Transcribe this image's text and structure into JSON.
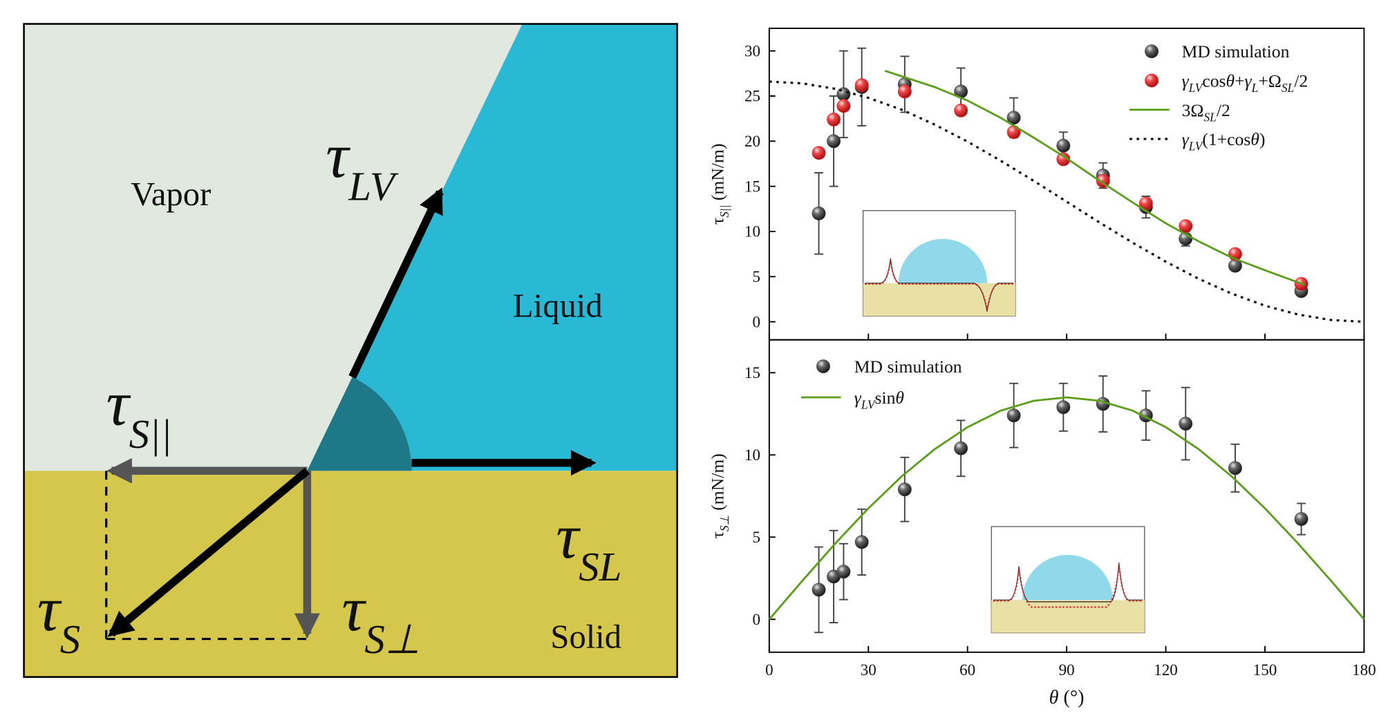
{
  "diagram": {
    "regions": [
      "Vapor",
      "Liquid",
      "Solid"
    ],
    "labels": [
      {
        "symbol": "τ",
        "subscript": "LV"
      },
      {
        "symbol": "τ",
        "subscript": "S||"
      },
      {
        "symbol": "τ",
        "subscript": "SL"
      },
      {
        "symbol": "τ",
        "subscript": "S"
      },
      {
        "symbol": "τ",
        "subscript": "S⊥"
      }
    ]
  },
  "chart_data": [
    {
      "type": "scatter",
      "y_label": [
        {
          "text": "τ",
          "style": "n"
        },
        {
          "text": "S||",
          "style": "sub"
        },
        {
          "text": " (mN/m)",
          "style": "n"
        }
      ],
      "xlim": [
        0,
        180
      ],
      "ylim": [
        -2,
        32.5
      ],
      "yticks": [
        0,
        5,
        10,
        15,
        20,
        25,
        30
      ],
      "legend": "upper right",
      "series": [
        {
          "type": "scatter",
          "color": "#3a3a3a",
          "name": [
            {
              "text": "MD simulation",
              "style": "n"
            }
          ],
          "x": [
            15,
            19.5,
            22.5,
            28,
            41,
            58,
            74,
            89,
            101,
            114,
            126,
            141,
            161
          ],
          "values": [
            12.0,
            20.0,
            25.2,
            26.0,
            26.3,
            25.5,
            22.6,
            19.5,
            16.2,
            12.7,
            9.2,
            6.2,
            3.4
          ],
          "errors": [
            4.5,
            5.0,
            4.8,
            4.3,
            3.1,
            2.6,
            2.2,
            1.5,
            1.4,
            1.2,
            0.8,
            0.4,
            0.3
          ]
        },
        {
          "type": "scatter",
          "color": "#e8262d",
          "name": [
            {
              "text": "γ",
              "style": "i"
            },
            {
              "text": "LV",
              "style": "sub"
            },
            {
              "text": "cos",
              "style": "n"
            },
            {
              "text": "θ",
              "style": "i"
            },
            {
              "text": "+",
              "style": "n"
            },
            {
              "text": "γ",
              "style": "i"
            },
            {
              "text": "L",
              "style": "sub"
            },
            {
              "text": "+Ω",
              "style": "n"
            },
            {
              "text": "SL",
              "style": "sub"
            },
            {
              "text": "/2",
              "style": "n"
            }
          ],
          "x": [
            15,
            19.5,
            22.5,
            28,
            41,
            58,
            74,
            89,
            101,
            114,
            126,
            141,
            161
          ],
          "values": [
            18.7,
            22.4,
            23.9,
            26.2,
            25.5,
            23.4,
            21.0,
            18.0,
            15.6,
            13.1,
            10.6,
            7.5,
            4.2
          ]
        },
        {
          "type": "line",
          "color": "#5a9e1a",
          "style": "solid",
          "name": [
            {
              "text": "3Ω",
              "style": "n"
            },
            {
              "text": "SL",
              "style": "sub"
            },
            {
              "text": "/2",
              "style": "n"
            }
          ],
          "x": [
            35,
            40,
            50,
            60,
            70,
            80,
            90,
            100,
            110,
            120,
            130,
            140,
            150,
            162
          ],
          "values": [
            27.8,
            27.2,
            26.0,
            24.5,
            22.6,
            20.4,
            18.1,
            15.6,
            13.2,
            10.9,
            8.9,
            7.1,
            5.7,
            4.1
          ]
        },
        {
          "type": "line",
          "color": "#111111",
          "style": "dotted",
          "name": [
            {
              "text": "γ",
              "style": "i"
            },
            {
              "text": "LV",
              "style": "sub"
            },
            {
              "text": "(1+cos",
              "style": "n"
            },
            {
              "text": "θ",
              "style": "i"
            },
            {
              "text": ")",
              "style": "n"
            }
          ],
          "x": [
            0,
            10,
            20,
            30,
            40,
            50,
            60,
            70,
            80,
            90,
            100,
            110,
            120,
            130,
            140,
            150,
            160,
            170,
            180
          ],
          "values": [
            26.6,
            26.4,
            25.8,
            24.8,
            23.5,
            21.85,
            19.95,
            17.85,
            15.61,
            13.3,
            10.99,
            8.75,
            6.65,
            4.75,
            3.11,
            1.78,
            0.8,
            0.2,
            0
          ]
        }
      ]
    },
    {
      "type": "scatter",
      "x_label": [
        {
          "text": "θ",
          "style": "i"
        },
        {
          "text": " (°)",
          "style": "n"
        }
      ],
      "y_label": [
        {
          "text": "τ",
          "style": "n"
        },
        {
          "text": "S⊥",
          "style": "sub"
        },
        {
          "text": " (mN/m)",
          "style": "n"
        }
      ],
      "xlim": [
        0,
        180
      ],
      "ylim": [
        -2,
        17
      ],
      "xticks": [
        0,
        30,
        60,
        90,
        120,
        150,
        180
      ],
      "yticks": [
        0,
        5,
        10,
        15
      ],
      "legend": "upper left",
      "series": [
        {
          "type": "scatter",
          "color": "#3a3a3a",
          "name": [
            {
              "text": "MD simulation",
              "style": "n"
            }
          ],
          "x": [
            15,
            19.5,
            22.5,
            28,
            41,
            58,
            74,
            89,
            101,
            114,
            126,
            141,
            161
          ],
          "values": [
            1.8,
            2.6,
            2.9,
            4.7,
            7.9,
            10.4,
            12.4,
            12.9,
            13.1,
            12.4,
            11.9,
            9.2,
            6.1
          ],
          "errors": [
            2.6,
            2.8,
            1.7,
            2.0,
            1.95,
            1.7,
            1.95,
            1.45,
            1.7,
            1.5,
            2.2,
            1.45,
            0.95
          ]
        },
        {
          "type": "line",
          "color": "#5a9e1a",
          "style": "solid",
          "name": [
            {
              "text": "γ",
              "style": "i"
            },
            {
              "text": "LV",
              "style": "sub"
            },
            {
              "text": "sin",
              "style": "n"
            },
            {
              "text": "θ",
              "style": "i"
            }
          ],
          "x": [
            0,
            10,
            20,
            30,
            40,
            50,
            60,
            70,
            80,
            90,
            100,
            110,
            120,
            130,
            140,
            150,
            160,
            170,
            180
          ],
          "values": [
            0,
            2.34,
            4.62,
            6.75,
            8.68,
            10.34,
            11.69,
            12.69,
            13.29,
            13.5,
            13.29,
            12.69,
            11.69,
            10.34,
            8.68,
            6.75,
            4.62,
            2.34,
            0
          ]
        }
      ]
    }
  ]
}
